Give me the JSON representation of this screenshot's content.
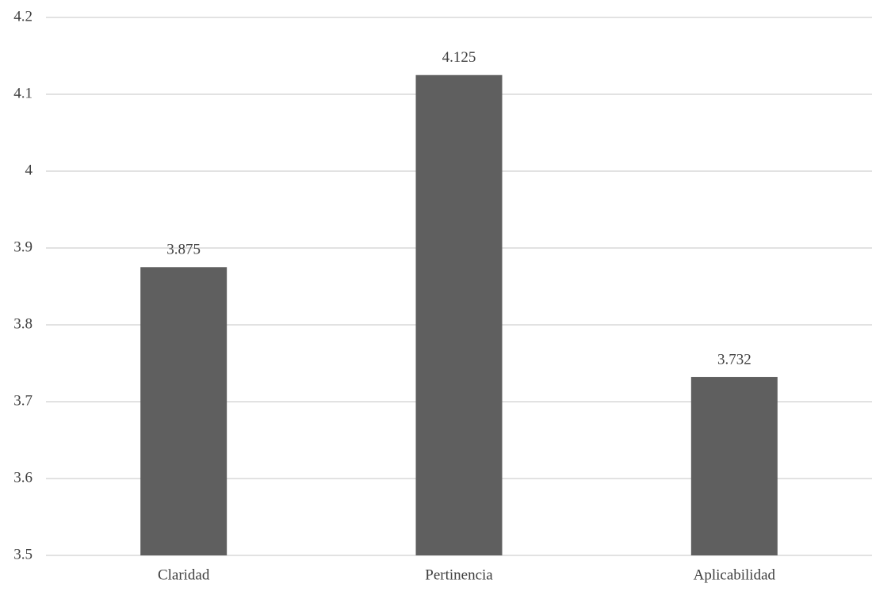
{
  "chart_data": {
    "type": "bar",
    "categories": [
      "Claridad",
      "Pertinencia",
      "Aplicabilidad"
    ],
    "values": [
      3.875,
      4.125,
      3.732
    ],
    "color": "#5f5f5f",
    "ylim": [
      3.5,
      4.2
    ],
    "yticks": [
      3.5,
      3.6,
      3.7,
      3.8,
      3.9,
      4,
      4.1,
      4.2
    ],
    "grid": true,
    "data_labels": true
  }
}
